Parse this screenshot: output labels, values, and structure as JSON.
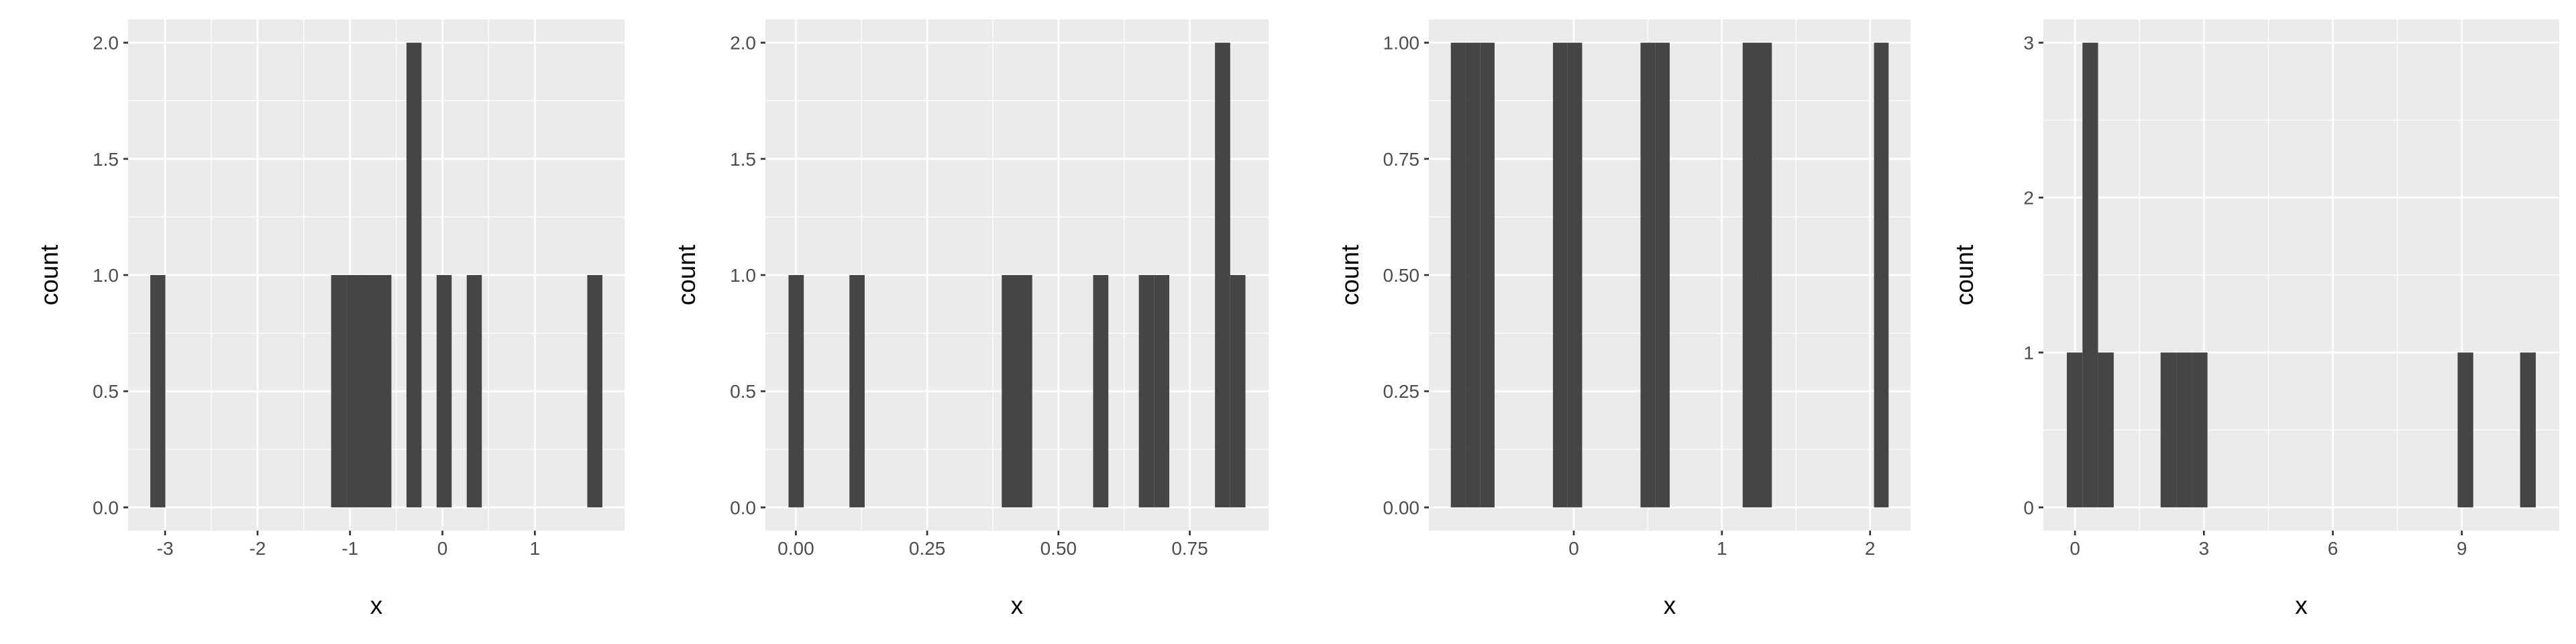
{
  "chart_data": [
    {
      "type": "histogram",
      "xlabel": "x",
      "ylabel": "count",
      "color": "#454545",
      "grid": true,
      "bins": [
        -3.16,
        -2.997,
        -2.834,
        -2.671,
        -2.508,
        -2.345,
        -2.182,
        -2.019,
        -1.856,
        -1.693,
        -1.53,
        -1.367,
        -1.204,
        -1.041,
        -0.878,
        -0.715,
        -0.552,
        -0.389,
        -0.226,
        -0.063,
        0.1,
        0.263,
        0.426,
        0.589,
        0.752,
        0.915,
        1.078,
        1.241,
        1.404,
        1.567,
        1.73
      ],
      "counts": [
        1,
        0,
        0,
        0,
        0,
        0,
        0,
        0,
        0,
        0,
        0,
        0,
        1,
        1,
        1,
        1,
        0,
        2,
        0,
        1,
        0,
        1,
        0,
        0,
        0,
        0,
        0,
        0,
        0,
        1
      ],
      "xlim": [
        -3.4,
        1.97
      ],
      "ylim": [
        -0.1,
        2.1
      ],
      "xticks": [
        -3,
        -2,
        -1,
        0,
        1
      ],
      "yticks": [
        {
          "value": 0,
          "label": "0.0"
        },
        {
          "value": 0.5,
          "label": "0.5"
        },
        {
          "value": 1,
          "label": "1.0"
        },
        {
          "value": 1.5,
          "label": "1.5"
        },
        {
          "value": 2,
          "label": "2.0"
        }
      ]
    },
    {
      "type": "histogram",
      "xlabel": "x",
      "ylabel": "count",
      "color": "#454545",
      "grid": true,
      "bins": [
        -0.014,
        0.015,
        0.044,
        0.073,
        0.102,
        0.131,
        0.16,
        0.189,
        0.218,
        0.247,
        0.276,
        0.305,
        0.334,
        0.363,
        0.392,
        0.421,
        0.45,
        0.479,
        0.508,
        0.537,
        0.566,
        0.595,
        0.624,
        0.653,
        0.682,
        0.711,
        0.74,
        0.769,
        0.798,
        0.827,
        0.856
      ],
      "counts": [
        1,
        0,
        0,
        0,
        1,
        0,
        0,
        0,
        0,
        0,
        0,
        0,
        0,
        0,
        1,
        1,
        0,
        0,
        0,
        0,
        1,
        0,
        0,
        1,
        1,
        0,
        0,
        0,
        2,
        1
      ],
      "xlim": [
        -0.058,
        0.9
      ],
      "ylim": [
        -0.1,
        2.1
      ],
      "xticks": [
        {
          "value": 0,
          "label": "0.00"
        },
        {
          "value": 0.25,
          "label": "0.25"
        },
        {
          "value": 0.5,
          "label": "0.50"
        },
        {
          "value": 0.75,
          "label": "0.75"
        }
      ],
      "yticks": [
        {
          "value": 0,
          "label": "0.0"
        },
        {
          "value": 0.5,
          "label": "0.5"
        },
        {
          "value": 1,
          "label": "1.0"
        },
        {
          "value": 1.5,
          "label": "1.5"
        },
        {
          "value": 2,
          "label": "2.0"
        }
      ]
    },
    {
      "type": "histogram",
      "xlabel": "x",
      "ylabel": "count",
      "color": "#454545",
      "grid": true,
      "bins": [
        -0.83,
        -0.7315,
        -0.633,
        -0.5345,
        -0.436,
        -0.3375,
        -0.239,
        -0.1405,
        -0.042,
        0.0565,
        0.155,
        0.2535,
        0.352,
        0.4505,
        0.549,
        0.6475,
        0.746,
        0.8445,
        0.943,
        1.0415,
        1.14,
        1.2385,
        1.337,
        1.4355,
        1.534,
        1.6325,
        1.731,
        1.8295,
        1.928,
        2.0265,
        2.125
      ],
      "counts": [
        1,
        1,
        1,
        0,
        0,
        0,
        0,
        1,
        1,
        0,
        0,
        0,
        0,
        1,
        1,
        0,
        0,
        0,
        0,
        0,
        1,
        1,
        0,
        0,
        0,
        0,
        0,
        0,
        0,
        1
      ],
      "xlim": [
        -0.978,
        2.273
      ],
      "ylim": [
        -0.05,
        1.05
      ],
      "xticks": [
        0,
        1,
        2
      ],
      "yticks": [
        {
          "value": 0,
          "label": "0.00"
        },
        {
          "value": 0.25,
          "label": "0.25"
        },
        {
          "value": 0.5,
          "label": "0.50"
        },
        {
          "value": 0.75,
          "label": "0.75"
        },
        {
          "value": 1,
          "label": "1.00"
        }
      ]
    },
    {
      "type": "histogram",
      "xlabel": "x",
      "ylabel": "count",
      "color": "#454545",
      "grid": true,
      "bins": [
        -0.19,
        0.174,
        0.537,
        0.901,
        1.265,
        1.629,
        1.992,
        2.356,
        2.72,
        3.083,
        3.447,
        3.811,
        4.174,
        4.538,
        4.902,
        5.266,
        5.629,
        5.993,
        6.357,
        6.72,
        7.084,
        7.448,
        7.811,
        8.175,
        8.539,
        8.903,
        9.266,
        9.63,
        9.994,
        10.357,
        10.721
      ],
      "counts": [
        1,
        3,
        1,
        0,
        0,
        0,
        1,
        1,
        1,
        0,
        0,
        0,
        0,
        0,
        0,
        0,
        0,
        0,
        0,
        0,
        0,
        0,
        0,
        0,
        0,
        1,
        0,
        0,
        0,
        1
      ],
      "xlim": [
        -0.736,
        11.267
      ],
      "ylim": [
        -0.15,
        3.15
      ],
      "xticks": [
        0,
        3,
        6,
        9
      ],
      "yticks": [
        0,
        1,
        2,
        3
      ]
    }
  ]
}
